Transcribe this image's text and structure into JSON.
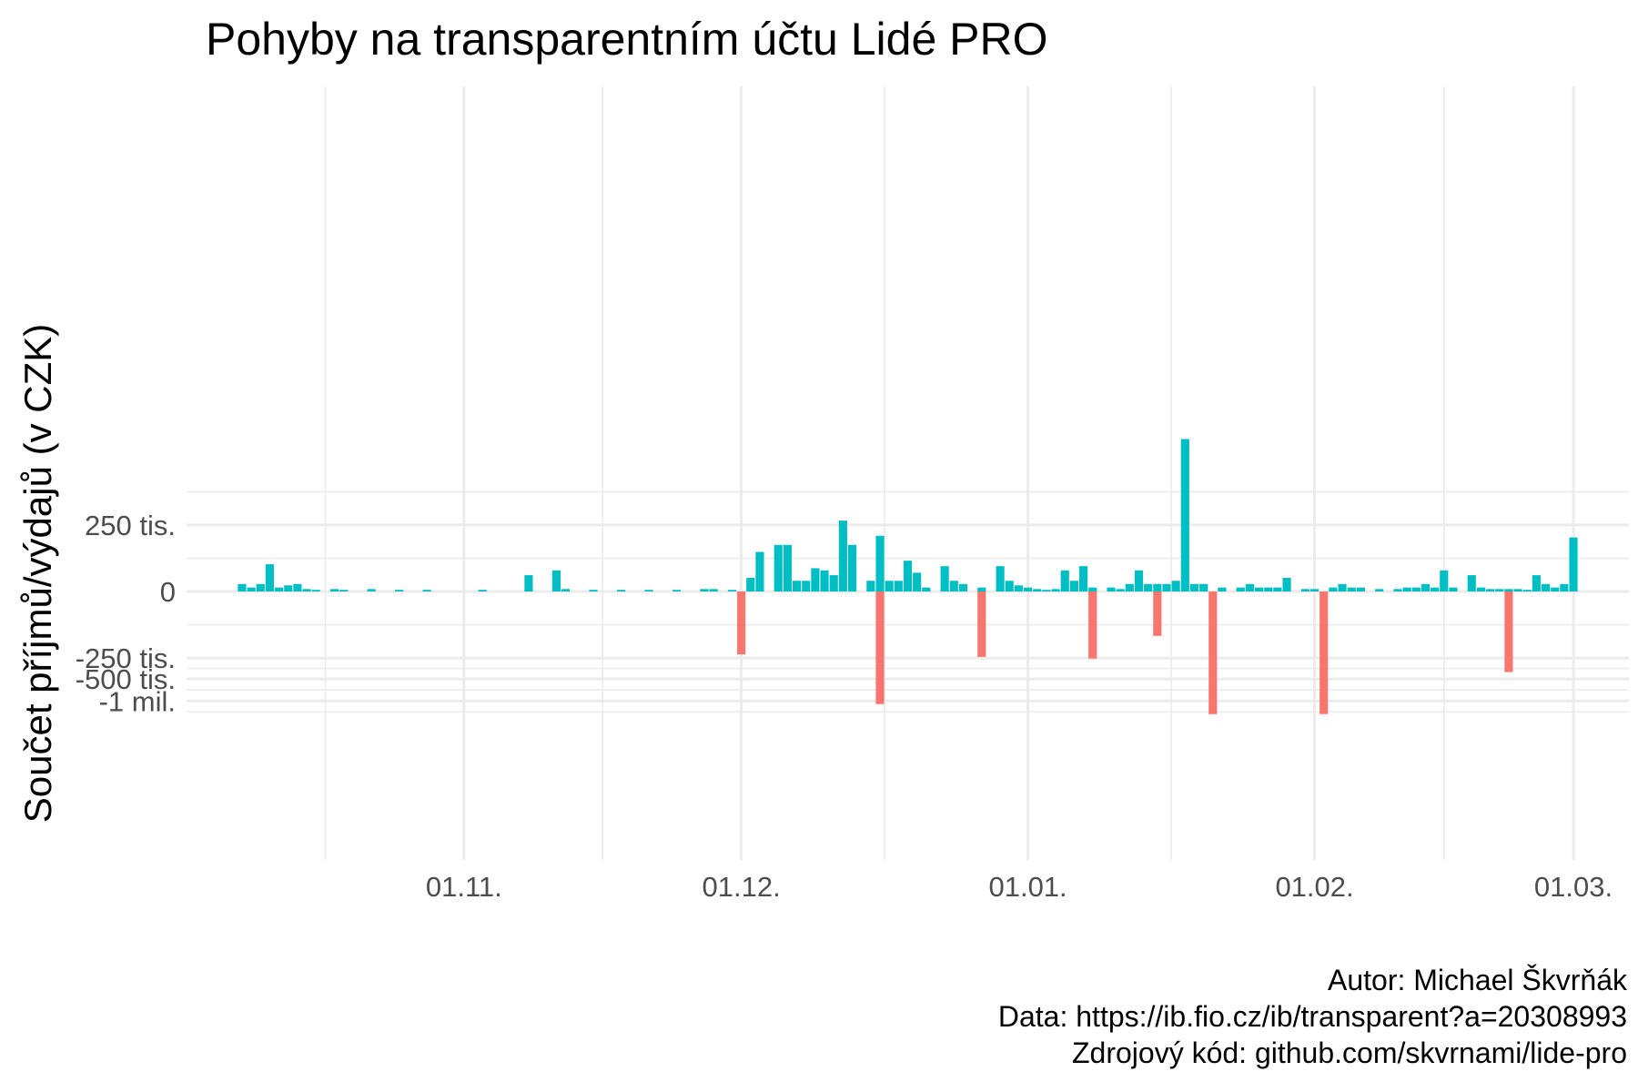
{
  "chart_data": {
    "type": "bar",
    "title": "Pohyby na transparentním účtu Lidé PRO",
    "xlabel": "",
    "ylabel": "Součet příjmů/výdajů (v CZK)",
    "x_range": [
      "2020-10-02",
      "2021-03-07"
    ],
    "x_ticks": [
      {
        "date": "2020-11-01",
        "label": "01.11."
      },
      {
        "date": "2020-12-01",
        "label": "01.12."
      },
      {
        "date": "2021-01-01",
        "label": "01.01."
      },
      {
        "date": "2021-02-01",
        "label": "01.02."
      },
      {
        "date": "2021-03-01",
        "label": "01.03."
      }
    ],
    "y_scale": "pseudo-log",
    "y_ticks": [
      {
        "value": 250000,
        "label": "250 tis."
      },
      {
        "value": 0,
        "label": "0"
      },
      {
        "value": -250000,
        "label": "-250 tis."
      },
      {
        "value": -500000,
        "label": "-500 tis."
      },
      {
        "value": -1000000,
        "label": "-1 mil."
      }
    ],
    "grid": true,
    "legend": "none",
    "colors": {
      "income": "#00BFC4",
      "expense": "#F8766D",
      "grid": "#EBEBEB"
    },
    "series": [
      {
        "type": "income",
        "color": "#00BFC4",
        "points": [
          [
            "2020-10-08",
            10000
          ],
          [
            "2020-10-09",
            5000
          ],
          [
            "2020-10-10",
            10000
          ],
          [
            "2020-10-11",
            50000
          ],
          [
            "2020-10-12",
            5000
          ],
          [
            "2020-10-13",
            8000
          ],
          [
            "2020-10-14",
            10000
          ],
          [
            "2020-10-15",
            3000
          ],
          [
            "2020-10-16",
            2000
          ],
          [
            "2020-10-18",
            3000
          ],
          [
            "2020-10-19",
            2000
          ],
          [
            "2020-10-22",
            3000
          ],
          [
            "2020-10-25",
            2000
          ],
          [
            "2020-10-28",
            2000
          ],
          [
            "2020-11-03",
            2000
          ],
          [
            "2020-11-08",
            25000
          ],
          [
            "2020-11-11",
            35000
          ],
          [
            "2020-11-12",
            3000
          ],
          [
            "2020-11-15",
            2000
          ],
          [
            "2020-11-18",
            2000
          ],
          [
            "2020-11-21",
            2000
          ],
          [
            "2020-11-24",
            2000
          ],
          [
            "2020-11-27",
            3000
          ],
          [
            "2020-11-28",
            3000
          ],
          [
            "2020-11-30",
            2000
          ],
          [
            "2020-12-02",
            20000
          ],
          [
            "2020-12-03",
            90000
          ],
          [
            "2020-12-05",
            120000
          ],
          [
            "2020-12-06",
            120000
          ],
          [
            "2020-12-07",
            15000
          ],
          [
            "2020-12-08",
            15000
          ],
          [
            "2020-12-09",
            40000
          ],
          [
            "2020-12-10",
            35000
          ],
          [
            "2020-12-11",
            25000
          ],
          [
            "2020-12-12",
            290000
          ],
          [
            "2020-12-13",
            120000
          ],
          [
            "2020-12-15",
            15000
          ],
          [
            "2020-12-16",
            170000
          ],
          [
            "2020-12-17",
            15000
          ],
          [
            "2020-12-18",
            15000
          ],
          [
            "2020-12-19",
            60000
          ],
          [
            "2020-12-20",
            30000
          ],
          [
            "2020-12-21",
            5000
          ],
          [
            "2020-12-23",
            45000
          ],
          [
            "2020-12-24",
            15000
          ],
          [
            "2020-12-25",
            10000
          ],
          [
            "2020-12-27",
            5000
          ],
          [
            "2020-12-29",
            45000
          ],
          [
            "2020-12-30",
            15000
          ],
          [
            "2020-12-31",
            8000
          ],
          [
            "2021-01-01",
            5000
          ],
          [
            "2021-01-02",
            3000
          ],
          [
            "2021-01-03",
            2000
          ],
          [
            "2021-01-04",
            3000
          ],
          [
            "2021-01-05",
            35000
          ],
          [
            "2021-01-06",
            15000
          ],
          [
            "2021-01-07",
            45000
          ],
          [
            "2021-01-08",
            5000
          ],
          [
            "2021-01-10",
            5000
          ],
          [
            "2021-01-11",
            3000
          ],
          [
            "2021-01-12",
            10000
          ],
          [
            "2021-01-13",
            35000
          ],
          [
            "2021-01-14",
            10000
          ],
          [
            "2021-01-15",
            10000
          ],
          [
            "2021-01-16",
            10000
          ],
          [
            "2021-01-17",
            15000
          ],
          [
            "2021-01-18",
            3700000
          ],
          [
            "2021-01-19",
            10000
          ],
          [
            "2021-01-20",
            10000
          ],
          [
            "2021-01-22",
            5000
          ],
          [
            "2021-01-24",
            5000
          ],
          [
            "2021-01-25",
            10000
          ],
          [
            "2021-01-26",
            5000
          ],
          [
            "2021-01-27",
            5000
          ],
          [
            "2021-01-28",
            5000
          ],
          [
            "2021-01-29",
            20000
          ],
          [
            "2021-01-31",
            3000
          ],
          [
            "2021-02-01",
            3000
          ],
          [
            "2021-02-03",
            5000
          ],
          [
            "2021-02-04",
            10000
          ],
          [
            "2021-02-05",
            5000
          ],
          [
            "2021-02-06",
            5000
          ],
          [
            "2021-02-08",
            3000
          ],
          [
            "2021-02-10",
            3000
          ],
          [
            "2021-02-11",
            5000
          ],
          [
            "2021-02-12",
            5000
          ],
          [
            "2021-02-13",
            10000
          ],
          [
            "2021-02-14",
            5000
          ],
          [
            "2021-02-15",
            35000
          ],
          [
            "2021-02-16",
            5000
          ],
          [
            "2021-02-18",
            25000
          ],
          [
            "2021-02-19",
            5000
          ],
          [
            "2021-02-20",
            3000
          ],
          [
            "2021-02-21",
            3000
          ],
          [
            "2021-02-22",
            3000
          ],
          [
            "2021-02-23",
            3000
          ],
          [
            "2021-02-24",
            2000
          ],
          [
            "2021-02-25",
            25000
          ],
          [
            "2021-02-26",
            10000
          ],
          [
            "2021-02-27",
            5000
          ],
          [
            "2021-02-28",
            10000
          ],
          [
            "2021-03-01",
            160000
          ]
        ]
      },
      {
        "type": "expense",
        "color": "#F8766D",
        "points": [
          [
            "2020-12-01",
            -220000
          ],
          [
            "2020-12-16",
            -1100000
          ],
          [
            "2020-12-27",
            -240000
          ],
          [
            "2021-01-08",
            -255000
          ],
          [
            "2021-01-15",
            -110000
          ],
          [
            "2021-01-21",
            -1500000
          ],
          [
            "2021-02-02",
            -1500000
          ],
          [
            "2021-02-22",
            -400000
          ]
        ]
      }
    ]
  },
  "caption": {
    "author": "Autor: Michael Škvrňák",
    "data": "Data: https://ib.fio.cz/ib/transparent?a=20308993",
    "source": "Zdrojový kód: github.com/skvrnami/lide-pro"
  }
}
